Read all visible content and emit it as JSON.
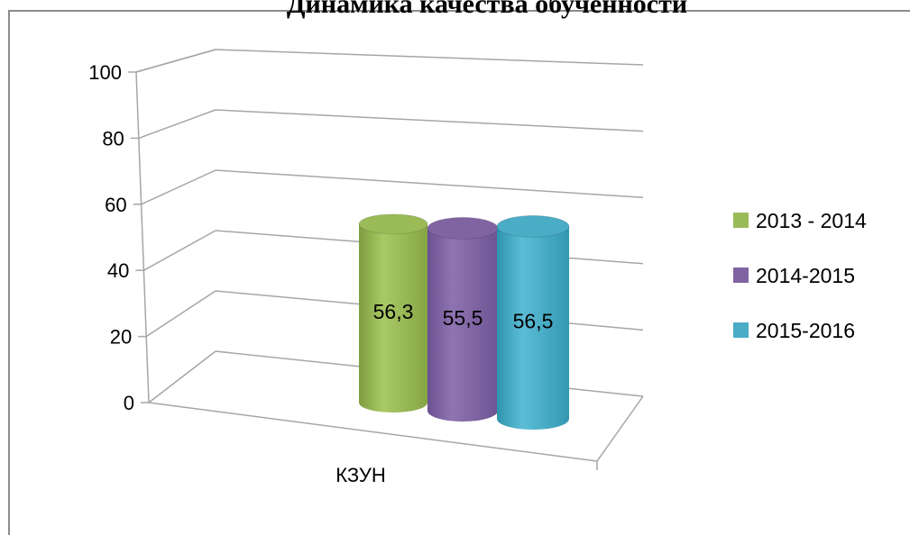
{
  "chart_data": {
    "type": "bar",
    "title": "Динамика качества обученности",
    "categories": [
      "КЗУН"
    ],
    "series": [
      {
        "name": "2013 - 2014",
        "values": [
          56.3
        ],
        "label": "56,3",
        "color": "#9bbb59"
      },
      {
        "name": "2014-2015",
        "values": [
          55.5
        ],
        "label": "55,5",
        "color": "#8064a2"
      },
      {
        "name": "2015-2016",
        "values": [
          56.5
        ],
        "label": "56,5",
        "color": "#4bacc6"
      }
    ],
    "y_ticks": [
      "0",
      "20",
      "40",
      "60",
      "80",
      "100"
    ],
    "ylim": [
      0,
      100
    ],
    "xlabel": "",
    "ylabel": "",
    "legend_position": "right",
    "grid": true,
    "bar_shape": "cylinder-3d"
  }
}
